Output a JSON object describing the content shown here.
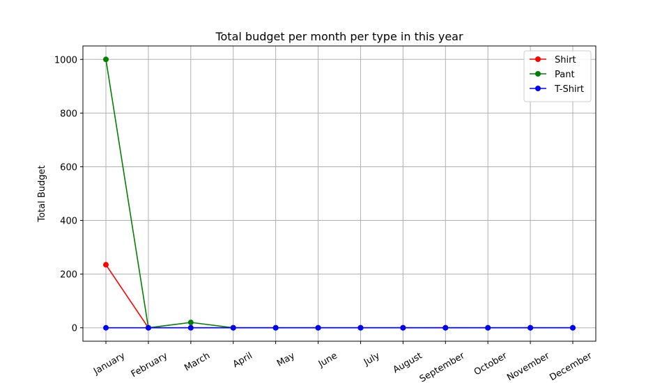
{
  "chart_data": {
    "type": "line",
    "title": "Total budget per month per type in this year",
    "xlabel": "",
    "ylabel": "Total Budget",
    "categories": [
      "January",
      "February",
      "March",
      "April",
      "May",
      "June",
      "July",
      "August",
      "September",
      "October",
      "November",
      "December"
    ],
    "ylim": [
      -50,
      1050
    ],
    "yticks": [
      0,
      200,
      400,
      600,
      800,
      1000
    ],
    "grid": true,
    "legend_position": "top-right",
    "series": [
      {
        "name": "Shirt",
        "color": "#ff0000",
        "values": [
          235,
          0,
          0,
          0,
          0,
          0,
          0,
          0,
          0,
          0,
          0,
          0
        ]
      },
      {
        "name": "Pant",
        "color": "#008000",
        "values": [
          1000,
          0,
          20,
          0,
          0,
          0,
          0,
          0,
          0,
          0,
          0,
          0
        ]
      },
      {
        "name": "T-Shirt",
        "color": "#0000ff",
        "values": [
          0,
          0,
          0,
          0,
          0,
          0,
          0,
          0,
          0,
          0,
          0,
          0
        ]
      }
    ]
  }
}
